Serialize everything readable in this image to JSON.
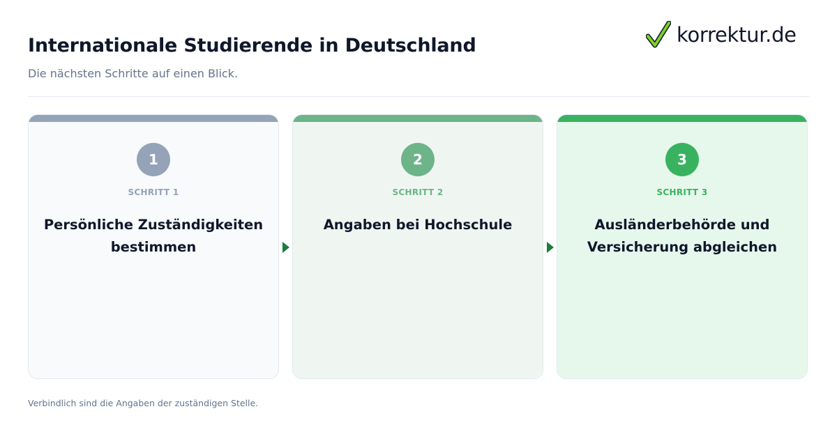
{
  "header": {
    "title": "Internationale Studierende in Deutschland",
    "subtitle": "Die nächsten Schritte auf einen Blick."
  },
  "logo": {
    "text": "korrektur.de",
    "icon": "checkmark-icon",
    "icon_color": "#7ed321"
  },
  "steps": [
    {
      "number": "1",
      "label": "SCHRITT 1",
      "heading": "Persönliche Zuständigkeiten bestimmen",
      "color": "#94a3b8"
    },
    {
      "number": "2",
      "label": "SCHRITT 2",
      "heading": "Angaben bei Hochschule",
      "color": "#6db488"
    },
    {
      "number": "3",
      "label": "SCHRITT 3",
      "heading": "Ausländerbehörde und Versicherung abgleichen",
      "color": "#39b25f"
    }
  ],
  "footer": {
    "note": "Verbindlich sind die Angaben der zuständigen Stelle."
  }
}
